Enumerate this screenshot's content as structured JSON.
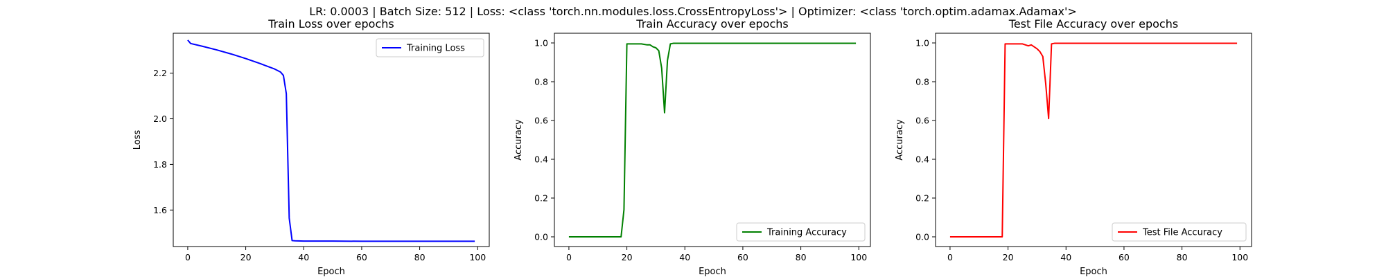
{
  "suptitle": "LR: 0.0003 | Batch Size: 512 | Loss: <class 'torch.nn.modules.loss.CrossEntropyLoss'> | Optimizer: <class 'torch.optim.adamax.Adamax'>",
  "chart_data": [
    {
      "type": "line",
      "title": "Train Loss over epochs",
      "xlabel": "Epoch",
      "ylabel": "Loss",
      "xlim": [
        -5,
        104
      ],
      "ylim": [
        1.44,
        2.375
      ],
      "xticks": [
        0,
        20,
        40,
        60,
        80,
        100
      ],
      "yticks": [
        1.6,
        1.8,
        2.0,
        2.2
      ],
      "legend_position": "upper right",
      "series": [
        {
          "name": "Training Loss",
          "color": "#0000ff",
          "x": [
            0,
            1,
            5,
            10,
            15,
            20,
            25,
            30,
            32,
            33,
            34,
            35,
            36,
            37,
            40,
            50,
            60,
            70,
            80,
            90,
            99
          ],
          "y": [
            2.345,
            2.33,
            2.318,
            2.302,
            2.284,
            2.264,
            2.242,
            2.218,
            2.205,
            2.19,
            2.11,
            1.565,
            1.466,
            1.465,
            1.464,
            1.464,
            1.463,
            1.463,
            1.463,
            1.463,
            1.463
          ]
        }
      ]
    },
    {
      "type": "line",
      "title": "Train Accuracy over epochs",
      "xlabel": "Epoch",
      "ylabel": "Accuracy",
      "xlim": [
        -5,
        104
      ],
      "ylim": [
        -0.05,
        1.05
      ],
      "xticks": [
        0,
        20,
        40,
        60,
        80,
        100
      ],
      "yticks": [
        0.0,
        0.2,
        0.4,
        0.6,
        0.8,
        1.0
      ],
      "legend_position": "lower right",
      "series": [
        {
          "name": "Training Accuracy",
          "color": "#008000",
          "x": [
            0,
            18,
            19,
            20,
            21,
            22,
            25,
            27,
            28,
            29,
            30,
            31,
            32,
            33,
            34,
            35,
            36,
            37,
            40,
            60,
            80,
            99
          ],
          "y": [
            0.0,
            0.0,
            0.14,
            0.995,
            0.995,
            0.995,
            0.995,
            0.99,
            0.99,
            0.98,
            0.975,
            0.96,
            0.87,
            0.64,
            0.91,
            0.995,
            0.998,
            0.998,
            0.998,
            0.998,
            0.998,
            0.998
          ]
        }
      ]
    },
    {
      "type": "line",
      "title": "Test File Accuracy over epochs",
      "xlabel": "Epoch",
      "ylabel": "Accuracy",
      "xlim": [
        -5,
        104
      ],
      "ylim": [
        -0.05,
        1.05
      ],
      "xticks": [
        0,
        20,
        40,
        60,
        80,
        100
      ],
      "yticks": [
        0.0,
        0.2,
        0.4,
        0.6,
        0.8,
        1.0
      ],
      "legend_position": "lower right",
      "series": [
        {
          "name": "Test File Accuracy",
          "color": "#ff0000",
          "x": [
            0,
            18,
            19,
            20,
            25,
            26,
            27,
            28,
            29,
            30,
            31,
            32,
            33,
            34,
            35,
            36,
            40,
            60,
            80,
            99
          ],
          "y": [
            0.0,
            0.0,
            0.995,
            0.995,
            0.995,
            0.99,
            0.985,
            0.99,
            0.98,
            0.97,
            0.955,
            0.93,
            0.79,
            0.61,
            0.995,
            0.998,
            0.998,
            0.998,
            0.998,
            0.998
          ]
        }
      ]
    }
  ]
}
